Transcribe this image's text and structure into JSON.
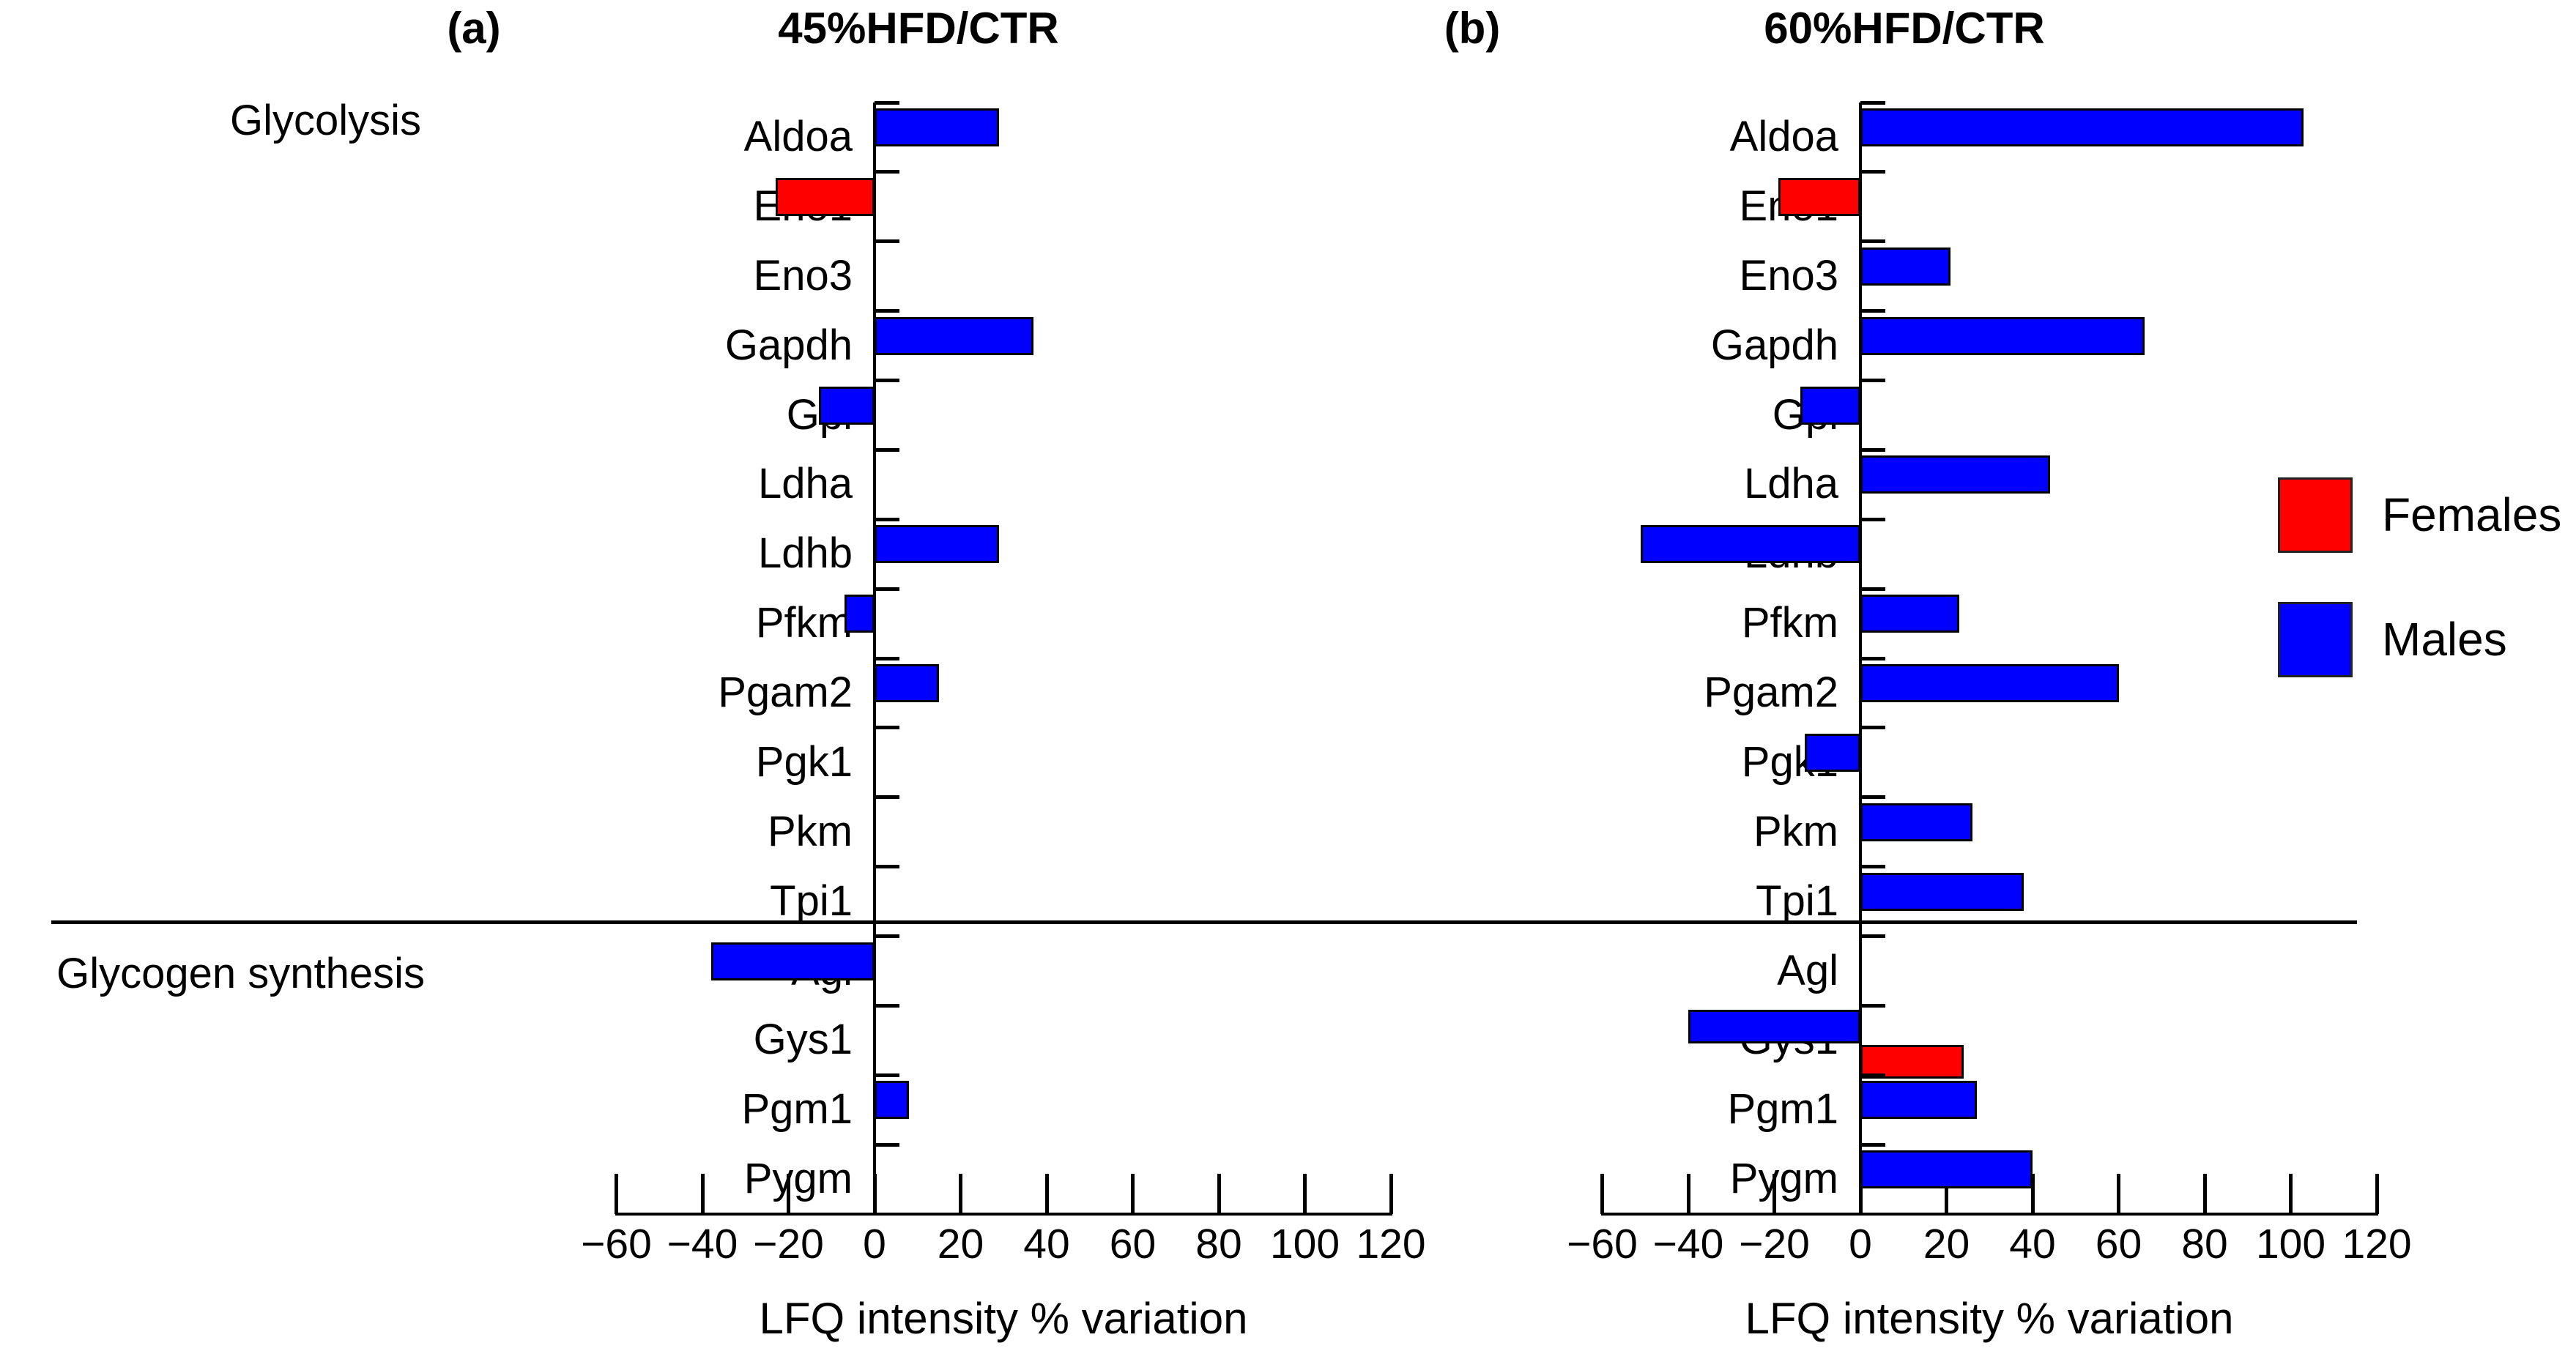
{
  "colors": {
    "females": "#ff0000",
    "males": "#0000ff",
    "axis": "#000000"
  },
  "legend": {
    "items": [
      {
        "label": "Females",
        "color": "#ff0000"
      },
      {
        "label": "Males",
        "color": "#0000ff"
      }
    ]
  },
  "chart_data": [
    {
      "type": "bar",
      "orientation": "horizontal",
      "panel": "(a)",
      "title": "45%HFD/CTR",
      "xlabel": "LFQ intensity % variation",
      "xlim": [
        -60,
        120
      ],
      "xticks": [
        -60,
        -40,
        -20,
        0,
        20,
        40,
        60,
        80,
        100,
        120
      ],
      "grid": false,
      "legend_entries": [
        "Females",
        "Males"
      ],
      "sections": [
        {
          "name": "Glycolysis",
          "categories": [
            "Aldoa",
            "Eno1",
            "Eno3",
            "Gapdh",
            "Gpi",
            "Ldha",
            "Ldhb",
            "Pfkm",
            "Pgam2",
            "Pgk1",
            "Pkm",
            "Tpi1"
          ],
          "series": [
            {
              "name": "Females",
              "values": [
                null,
                -23,
                null,
                null,
                null,
                null,
                null,
                null,
                null,
                null,
                null,
                null
              ]
            },
            {
              "name": "Males",
              "values": [
                29,
                null,
                null,
                37,
                -13,
                null,
                29,
                -7,
                15,
                null,
                null,
                null
              ]
            }
          ]
        },
        {
          "name": "Glycogen synthesis",
          "categories": [
            "Agl",
            "Gys1",
            "Pgm1",
            "Pygm"
          ],
          "series": [
            {
              "name": "Females",
              "values": [
                null,
                null,
                null,
                null
              ]
            },
            {
              "name": "Males",
              "values": [
                -38,
                null,
                8,
                null
              ]
            }
          ]
        }
      ]
    },
    {
      "type": "bar",
      "orientation": "horizontal",
      "panel": "(b)",
      "title": "60%HFD/CTR",
      "xlabel": "LFQ intensity % variation",
      "xlim": [
        -60,
        120
      ],
      "xticks": [
        -60,
        -40,
        -20,
        0,
        20,
        40,
        60,
        80,
        100,
        120
      ],
      "grid": false,
      "legend_entries": [
        "Females",
        "Males"
      ],
      "sections": [
        {
          "name": "Glycolysis",
          "categories": [
            "Aldoa",
            "Eno1",
            "Eno3",
            "Gapdh",
            "Gpi",
            "Ldha",
            "Ldhb",
            "Pfkm",
            "Pgam2",
            "Pgk1",
            "Pkm",
            "Tpi1"
          ],
          "series": [
            {
              "name": "Females",
              "values": [
                null,
                -19,
                null,
                null,
                null,
                null,
                null,
                null,
                null,
                null,
                null,
                null
              ]
            },
            {
              "name": "Males",
              "values": [
                103,
                null,
                21,
                66,
                -14,
                44,
                -51,
                23,
                60,
                -13,
                26,
                38
              ]
            }
          ]
        },
        {
          "name": "Glycogen synthesis",
          "categories": [
            "Agl",
            "Gys1",
            "Pgm1",
            "Pygm"
          ],
          "series": [
            {
              "name": "Females",
              "values": [
                null,
                24,
                null,
                null
              ]
            },
            {
              "name": "Males",
              "values": [
                null,
                -40,
                27,
                40
              ]
            }
          ]
        }
      ]
    }
  ]
}
